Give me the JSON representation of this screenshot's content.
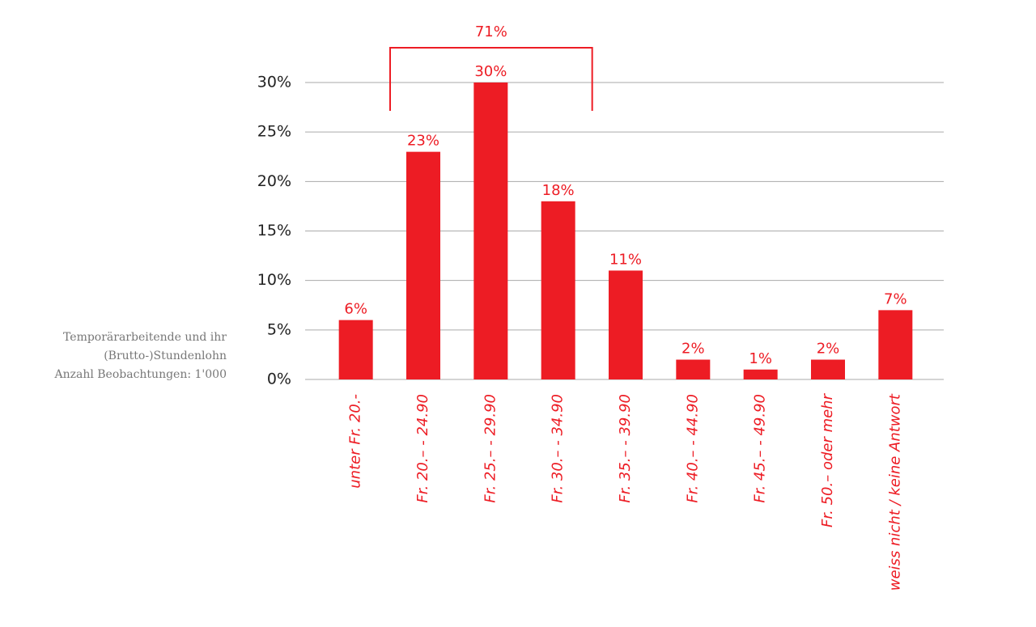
{
  "chart_data": {
    "type": "bar",
    "caption": [
      "Temporärarbeitende und ihr",
      "(Brutto-)Stundenlohn",
      "Anzahl Beobachtungen: 1'000"
    ],
    "categories": [
      "unter Fr. 20.-",
      "Fr. 20.– - 24.90",
      "Fr. 25.– - 29.90",
      "Fr. 30.– - 34.90",
      "Fr. 35.– - 39.90",
      "Fr. 40.– - 44.90",
      "Fr. 45.– - 49.90",
      "Fr. 50.– oder mehr",
      "weiss nicht / keine Antwort"
    ],
    "values": [
      6,
      23,
      30,
      18,
      11,
      2,
      1,
      2,
      7
    ],
    "value_labels": [
      "6%",
      "23%",
      "30%",
      "18%",
      "11%",
      "2%",
      "1%",
      "2%",
      "7%"
    ],
    "color": "#ed1c24",
    "ylim": [
      0,
      30
    ],
    "yticks": [
      {
        "value": 0,
        "label": "0%"
      },
      {
        "value": 5,
        "label": "5%"
      },
      {
        "value": 10,
        "label": "10%"
      },
      {
        "value": 15,
        "label": "15%"
      },
      {
        "value": 20,
        "label": "20%"
      },
      {
        "value": 25,
        "label": "25%"
      },
      {
        "value": 30,
        "label": "30%"
      }
    ],
    "grid": true,
    "bracket": {
      "label": "71%",
      "value": 71,
      "start": "Fr. 20.– - 24.90",
      "end": "Fr. 30.– - 34.90"
    }
  }
}
